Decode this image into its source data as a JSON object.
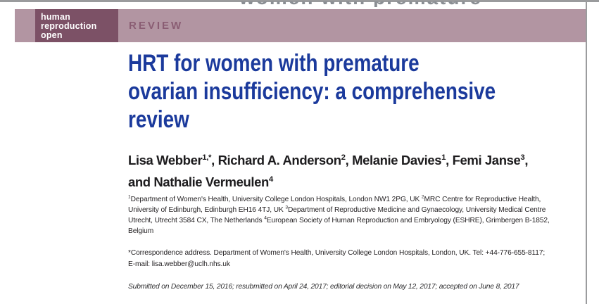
{
  "page": {
    "background": "#ffffff",
    "border_color": "#9a9b9d",
    "cropped_top_text": "women with premature"
  },
  "masthead": {
    "journal_name_lines": [
      "human",
      "reproduction",
      "open"
    ],
    "article_type": "REVIEW",
    "band_color": "#b295a2",
    "logo_block_color": "#7c5166",
    "article_type_color": "#8a5d73"
  },
  "article": {
    "title_color": "#1b3a9c",
    "title_lines": [
      "HRT for women with premature",
      "ovarian insufficiency: a comprehensive",
      "review"
    ],
    "authors_lines": [
      [
        {
          "t": "Lisa Webber"
        },
        {
          "sup": "1,*"
        },
        {
          "t": ", Richard A. Anderson"
        },
        {
          "sup": "2"
        },
        {
          "t": ", Melanie Davies"
        },
        {
          "sup": "1"
        },
        {
          "t": ", Femi Janse"
        },
        {
          "sup": "3"
        },
        {
          "t": ","
        }
      ],
      [
        {
          "t": "and Nathalie Vermeulen"
        },
        {
          "sup": "4"
        }
      ]
    ],
    "affiliation_lines": [
      [
        {
          "sup": "1"
        },
        {
          "t": "Department of Women's Health, University College London Hospitals, London NW1 2PG, UK "
        },
        {
          "sup": "2"
        },
        {
          "t": "MRC Centre for Reproductive Health,"
        }
      ],
      [
        {
          "t": "University of Edinburgh, Edinburgh EH16 4TJ, UK "
        },
        {
          "sup": "3"
        },
        {
          "t": "Department of Reproductive Medicine and Gynaecology, University Medical Centre"
        }
      ],
      [
        {
          "t": "Utrecht, Utrecht 3584 CX, The Netherlands "
        },
        {
          "sup": "4"
        },
        {
          "t": "European Society of Human Reproduction and Embryology (ESHRE), Grimbergen B-1852,"
        }
      ],
      [
        {
          "t": "Belgium"
        }
      ]
    ],
    "correspondence_lines": [
      "*Correspondence address. Department of Women's Health, University College London Hospitals, London, UK. Tel: +44-776-655-8117;",
      "E-mail: lisa.webber@uclh.nhs.uk"
    ],
    "history": "Submitted on December 15, 2016; resubmitted on April 24, 2017; editorial decision on May 12, 2017; accepted on June 8, 2017"
  }
}
